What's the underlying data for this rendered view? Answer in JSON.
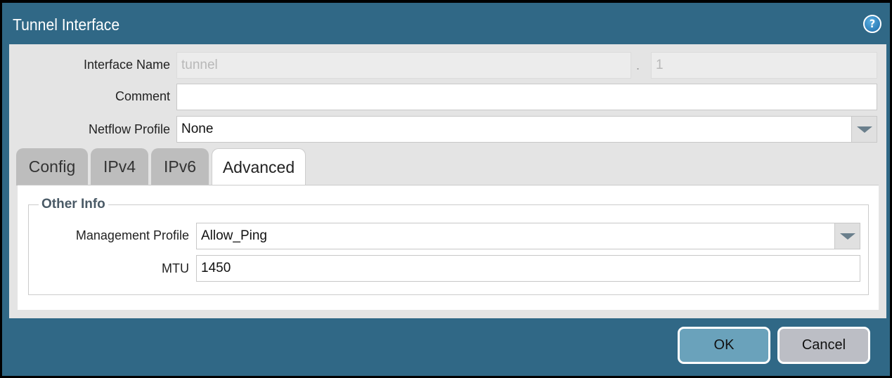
{
  "dialog": {
    "title": "Tunnel Interface",
    "help_icon": "?"
  },
  "form": {
    "interface_name_label": "Interface Name",
    "interface_name_value": "tunnel",
    "separator": ".",
    "interface_suffix_value": "1",
    "comment_label": "Comment",
    "comment_value": "",
    "netflow_label": "Netflow Profile",
    "netflow_value": "None"
  },
  "tabs": [
    {
      "label": "Config"
    },
    {
      "label": "IPv4"
    },
    {
      "label": "IPv6"
    },
    {
      "label": "Advanced",
      "active": true
    }
  ],
  "advanced": {
    "group_title": "Other Info",
    "mgmt_profile_label": "Management Profile",
    "mgmt_profile_value": "Allow_Ping",
    "mtu_label": "MTU",
    "mtu_value": "1450"
  },
  "buttons": {
    "ok": "OK",
    "cancel": "Cancel"
  },
  "colors": {
    "titlebar": "#306886",
    "ok": "#6aa2bb",
    "cancel": "#bcbec5"
  }
}
